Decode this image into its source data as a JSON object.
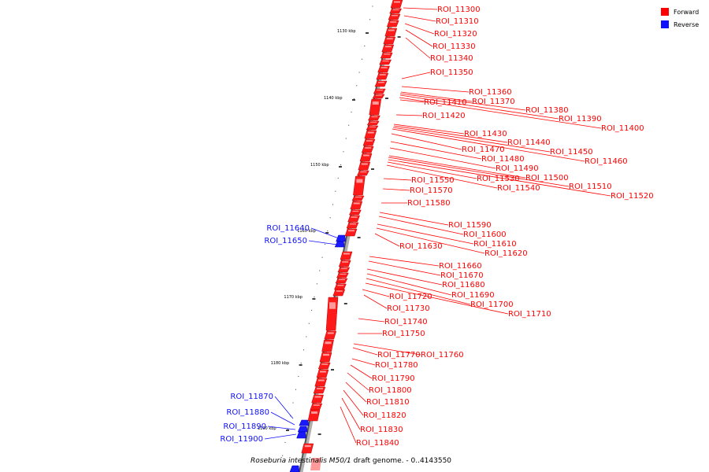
{
  "legend": {
    "forward_label": "Forward",
    "reverse_label": "Reverse",
    "forward_color": "#ff0000",
    "reverse_color": "#1010ff"
  },
  "caption": {
    "organism": "Roseburia intestinalis M50/1",
    "rest": " draft genome. - 0..4143550"
  },
  "axis_ticks": [
    "1130 kbp",
    "1140 kbp",
    "1150 kbp",
    "1160 kbp",
    "1170 kbp",
    "1180 kbp",
    "1190 kbp"
  ],
  "forward_labels": [
    "ROI_11300",
    "ROI_11310",
    "ROI_11320",
    "ROI_11330",
    "ROI_11340",
    "ROI_11350",
    "ROI_11360",
    "ROI_11370",
    "ROI_11380",
    "ROI_11390",
    "ROI_11400",
    "ROI_11410",
    "ROI_11420",
    "ROI_11430",
    "ROI_11440",
    "ROI_11450",
    "ROI_11460",
    "ROI_11470",
    "ROI_11480",
    "ROI_11490",
    "ROI_11500",
    "ROI_11510",
    "ROI_11520",
    "ROI_11530",
    "ROI_11540",
    "ROI_11550",
    "ROI_11570",
    "ROI_11580",
    "ROI_11590",
    "ROI_11600",
    "ROI_11610",
    "ROI_11620",
    "ROI_11630",
    "ROI_11660",
    "ROI_11670",
    "ROI_11680",
    "ROI_11690",
    "ROI_11700",
    "ROI_11710",
    "ROI_11720",
    "ROI_11730",
    "ROI_11740",
    "ROI_11750",
    "ROI_11760",
    "ROI_11770",
    "ROI_11780",
    "ROI_11790",
    "ROI_11800",
    "ROI_11810",
    "ROI_11820",
    "ROI_11830",
    "ROI_11840"
  ],
  "reverse_labels": [
    "ROI_11640",
    "ROI_11650",
    "ROI_11870",
    "ROI_11880",
    "ROI_11890",
    "ROI_11900"
  ]
}
